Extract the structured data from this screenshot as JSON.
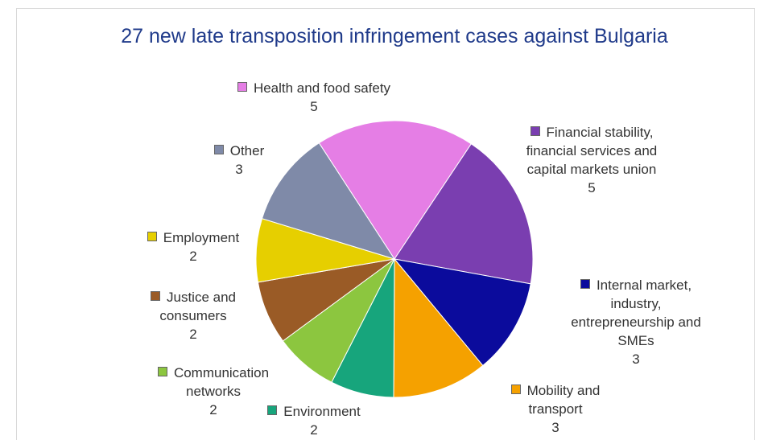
{
  "chart_data": {
    "type": "pie",
    "title": "27 new late transposition infringement cases against Bulgaria",
    "categories": [
      "Health and food safety",
      "Financial stability, financial services and capital markets union",
      "Internal market, industry, entrepreneurship and SMEs",
      "Mobility and transport",
      "Environment",
      "Communication networks",
      "Justice and consumers",
      "Employment",
      "Other"
    ],
    "values": [
      5,
      5,
      3,
      3,
      2,
      2,
      2,
      2,
      3
    ],
    "colors": [
      "#e57ee5",
      "#7a3eb0",
      "#0b0b9c",
      "#f5a100",
      "#17a57c",
      "#8cc63f",
      "#9a5b26",
      "#e6cf00",
      "#7f8aa8"
    ]
  }
}
